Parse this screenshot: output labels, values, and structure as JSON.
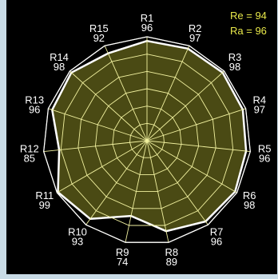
{
  "chart_data": {
    "type": "radar",
    "categories": [
      "R1",
      "R2",
      "R3",
      "R4",
      "R5",
      "R6",
      "R7",
      "R8",
      "R9",
      "R10",
      "R11",
      "R12",
      "R13",
      "R14",
      "R15"
    ],
    "values": [
      96,
      97,
      98,
      97,
      96,
      98,
      96,
      89,
      74,
      93,
      99,
      85,
      96,
      98,
      92
    ],
    "range": [
      0,
      100
    ],
    "grid": true,
    "grid_rings": 6,
    "fill_color": "#4a4a14",
    "outline_color": "#ffffff",
    "grid_color": "#f2f2a0",
    "background": "#000000",
    "annotations": [
      {
        "label": "Re",
        "value": "94"
      },
      {
        "label": "Ra",
        "value": "96"
      }
    ]
  }
}
